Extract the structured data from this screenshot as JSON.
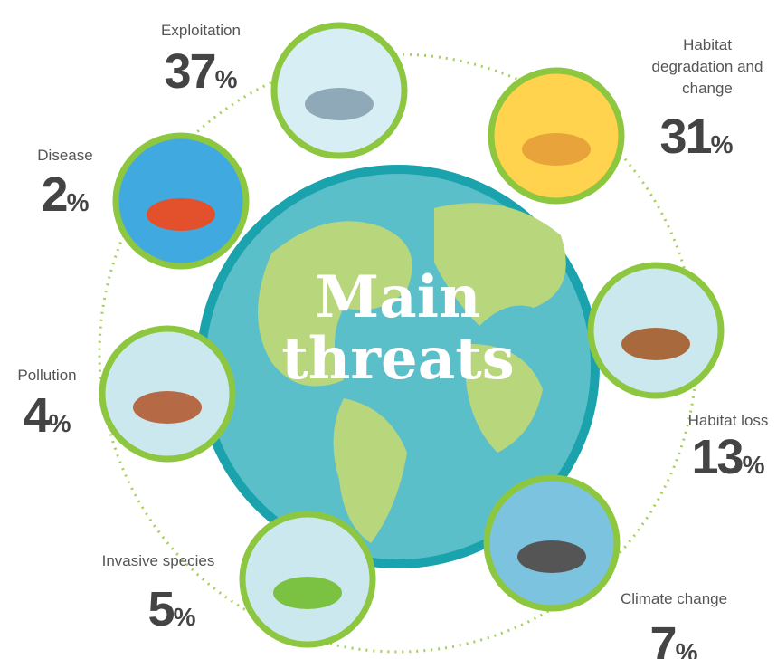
{
  "title_lines": [
    "Main",
    "threats"
  ],
  "threats": [
    {
      "label": "Exploitation",
      "value": 37,
      "unit": "%"
    },
    {
      "label": "Habitat degradation and change",
      "value": 31,
      "unit": "%"
    },
    {
      "label": "Disease",
      "value": 2,
      "unit": "%"
    },
    {
      "label": "Habitat loss",
      "value": 13,
      "unit": "%"
    },
    {
      "label": "Pollution",
      "value": 4,
      "unit": "%"
    },
    {
      "label": "Climate change",
      "value": 7,
      "unit": "%"
    },
    {
      "label": "Invasive species",
      "value": 5,
      "unit": "%"
    }
  ]
}
